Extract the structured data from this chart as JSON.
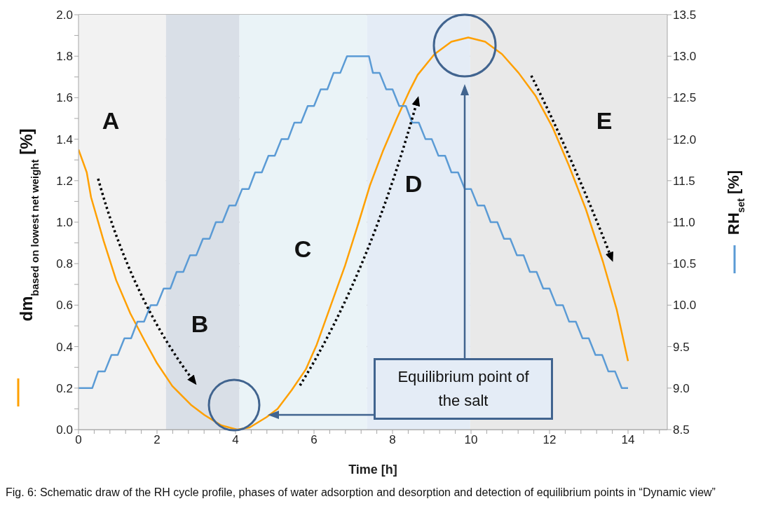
{
  "chart_data": {
    "type": "line",
    "xlabel": "Time [h]",
    "ylabel": "dm$_{based on lowest net weight}$ [%]",
    "y2label": "RH$_{set}$ [%]",
    "xlim": [
      0,
      15
    ],
    "xticks": [
      0,
      {
        "value": 0.4,
        "label": null
      },
      {
        "value": 0.8,
        "label": null
      },
      {
        "value": 1.2,
        "label": null
      },
      {
        "value": 1.6,
        "label": null
      },
      2,
      {
        "value": 2.4,
        "label": null
      },
      {
        "value": 2.8,
        "label": null
      },
      {
        "value": 3.2,
        "label": null
      },
      {
        "value": 3.6,
        "label": null
      },
      4,
      {
        "value": 4.4,
        "label": null
      },
      {
        "value": 4.8,
        "label": null
      },
      {
        "value": 5.2,
        "label": null
      },
      {
        "value": 5.6,
        "label": null
      },
      6,
      {
        "value": 6.4,
        "label": null
      },
      {
        "value": 6.8,
        "label": null
      },
      {
        "value": 7.2,
        "label": null
      },
      {
        "value": 7.6,
        "label": null
      },
      8,
      {
        "value": 8.4,
        "label": null
      },
      {
        "value": 8.8,
        "label": null
      },
      {
        "value": 9.2,
        "label": null
      },
      {
        "value": 9.6,
        "label": null
      },
      10,
      {
        "value": 10.4,
        "label": null
      },
      {
        "value": 10.8,
        "label": null
      },
      {
        "value": 11.2,
        "label": null
      },
      {
        "value": 11.6,
        "label": null
      },
      12,
      {
        "value": 12.4,
        "label": null
      },
      {
        "value": 12.8,
        "label": null
      },
      {
        "value": 13.2,
        "label": null
      },
      {
        "value": 13.6,
        "label": null
      },
      14,
      {
        "value": 14.4,
        "label": null
      },
      {
        "value": 14.8,
        "label": null
      }
    ],
    "ylim": [
      0,
      2
    ],
    "yticks": [
      {
        "value": 0,
        "label": "0.0"
      },
      {
        "value": 0.1,
        "label": null
      },
      {
        "value": 0.2,
        "label": "0.2"
      },
      {
        "value": 0.3,
        "label": null
      },
      {
        "value": 0.4,
        "label": "0.4"
      },
      {
        "value": 0.5,
        "label": null
      },
      {
        "value": 0.6,
        "label": "0.6"
      },
      {
        "value": 0.7,
        "label": null
      },
      {
        "value": 0.8,
        "label": "0.8"
      },
      {
        "value": 0.9,
        "label": null
      },
      {
        "value": 1,
        "label": "1.0"
      },
      {
        "value": 1.1,
        "label": null
      },
      {
        "value": 1.2,
        "label": "1.2"
      },
      {
        "value": 1.3,
        "label": null
      },
      {
        "value": 1.4,
        "label": "1.4"
      },
      {
        "value": 1.5,
        "label": null
      },
      {
        "value": 1.6,
        "label": "1.6"
      },
      {
        "value": 1.7,
        "label": null
      },
      {
        "value": 1.8,
        "label": "1.8"
      },
      {
        "value": 1.9,
        "label": null
      },
      {
        "value": 2,
        "label": "2.0"
      }
    ],
    "y2lim": [
      8.5,
      13.5
    ],
    "y2ticks": [
      8.5,
      {
        "value": 9,
        "label": "9.0"
      },
      9.5,
      {
        "value": 10,
        "label": "10.0"
      },
      10.5,
      {
        "value": 11,
        "label": "11.0"
      },
      11.5,
      {
        "value": 12,
        "label": "12.0"
      },
      12.5,
      {
        "value": 13,
        "label": "13.0"
      },
      13.5
    ],
    "grid": "y",
    "marker": "none",
    "line_style": "solid",
    "bands": [
      {
        "axis": "x",
        "from": 0,
        "to": 2.23,
        "label": "A",
        "color": "#f2f2f2"
      },
      {
        "axis": "x",
        "from": 2.23,
        "to": 4.1,
        "label": "B",
        "color": "#d9dfe7"
      },
      {
        "axis": "x",
        "from": 4.1,
        "to": 7.35,
        "label": "C",
        "color": "#eaf3f7"
      },
      {
        "axis": "x",
        "from": 7.35,
        "to": 9.98,
        "label": "D",
        "color": "#e4ecf6"
      },
      {
        "axis": "x",
        "from": 9.98,
        "to": 15,
        "label": "E",
        "color": "#e9e9e9"
      }
    ],
    "series": [
      {
        "color": "#ffa000",
        "x": [
          0,
          0.21,
          0.32,
          0.64,
          0.96,
          1.32,
          1.68,
          2.0,
          2.39,
          2.86,
          3.21,
          3.64,
          4.04,
          4.36,
          4.79,
          5.07,
          5.43,
          5.79,
          6.07,
          6.43,
          6.79,
          7.14,
          7.43,
          7.75,
          8.11,
          8.45,
          8.64,
          9.07,
          9.5,
          9.93,
          10.36,
          10.79,
          11.21,
          11.64,
          12.07,
          12.5,
          12.93,
          13.36,
          13.71,
          14.0
        ],
        "values": [
          1.35,
          1.24,
          1.12,
          0.91,
          0.72,
          0.56,
          0.43,
          0.32,
          0.21,
          0.12,
          0.07,
          0.02,
          0.0,
          0.01,
          0.06,
          0.1,
          0.19,
          0.29,
          0.41,
          0.6,
          0.79,
          1.0,
          1.18,
          1.34,
          1.5,
          1.64,
          1.71,
          1.81,
          1.87,
          1.89,
          1.87,
          1.81,
          1.72,
          1.61,
          1.46,
          1.27,
          1.06,
          0.81,
          0.58,
          0.33
        ]
      },
      {
        "color": "#5b9bd5",
        "axis": "y2",
        "x": [
          0,
          0.35,
          0.5,
          0.67,
          0.84,
          1.0,
          1.17,
          1.34,
          1.5,
          1.67,
          1.84,
          2.0,
          2.17,
          2.34,
          2.5,
          2.67,
          2.84,
          3.0,
          3.17,
          3.34,
          3.5,
          3.67,
          3.84,
          4.0,
          4.17,
          4.34,
          4.5,
          4.67,
          4.84,
          5.0,
          5.17,
          5.34,
          5.5,
          5.67,
          5.84,
          6.0,
          6.17,
          6.34,
          6.5,
          6.67,
          6.84,
          7.4,
          7.5,
          7.67,
          7.84,
          8.0,
          8.17,
          8.34,
          8.5,
          8.67,
          8.84,
          9.0,
          9.17,
          9.34,
          9.5,
          9.67,
          9.84,
          10.0,
          10.17,
          10.34,
          10.5,
          10.67,
          10.84,
          11.0,
          11.17,
          11.34,
          11.5,
          11.67,
          11.84,
          12.0,
          12.17,
          12.34,
          12.5,
          12.67,
          12.84,
          13.0,
          13.17,
          13.34,
          13.5,
          13.67,
          13.84,
          14.0
        ],
        "values": [
          9.0,
          9.0,
          9.2,
          9.2,
          9.4,
          9.4,
          9.6,
          9.6,
          9.8,
          9.8,
          10.0,
          10.0,
          10.2,
          10.2,
          10.4,
          10.4,
          10.6,
          10.6,
          10.8,
          10.8,
          11.0,
          11.0,
          11.2,
          11.2,
          11.4,
          11.4,
          11.6,
          11.6,
          11.8,
          11.8,
          12.0,
          12.0,
          12.2,
          12.2,
          12.4,
          12.4,
          12.6,
          12.6,
          12.8,
          12.8,
          13.0,
          13.0,
          12.8,
          12.8,
          12.6,
          12.6,
          12.4,
          12.4,
          12.2,
          12.2,
          12.0,
          12.0,
          11.8,
          11.8,
          11.6,
          11.6,
          11.4,
          11.4,
          11.2,
          11.2,
          11.0,
          11.0,
          10.8,
          10.8,
          10.6,
          10.6,
          10.4,
          10.4,
          10.2,
          10.2,
          10.0,
          10.0,
          9.8,
          9.8,
          9.6,
          9.6,
          9.4,
          9.4,
          9.2,
          9.2,
          9.0,
          9.0
        ]
      }
    ],
    "annotations": [
      "Equilibrium point of the salt",
      "Fig. 6: Schematic draw of the RH cycle profile, phases of water adsorption and desorption and detection of equilibrium points in “Dynamic view”"
    ]
  }
}
